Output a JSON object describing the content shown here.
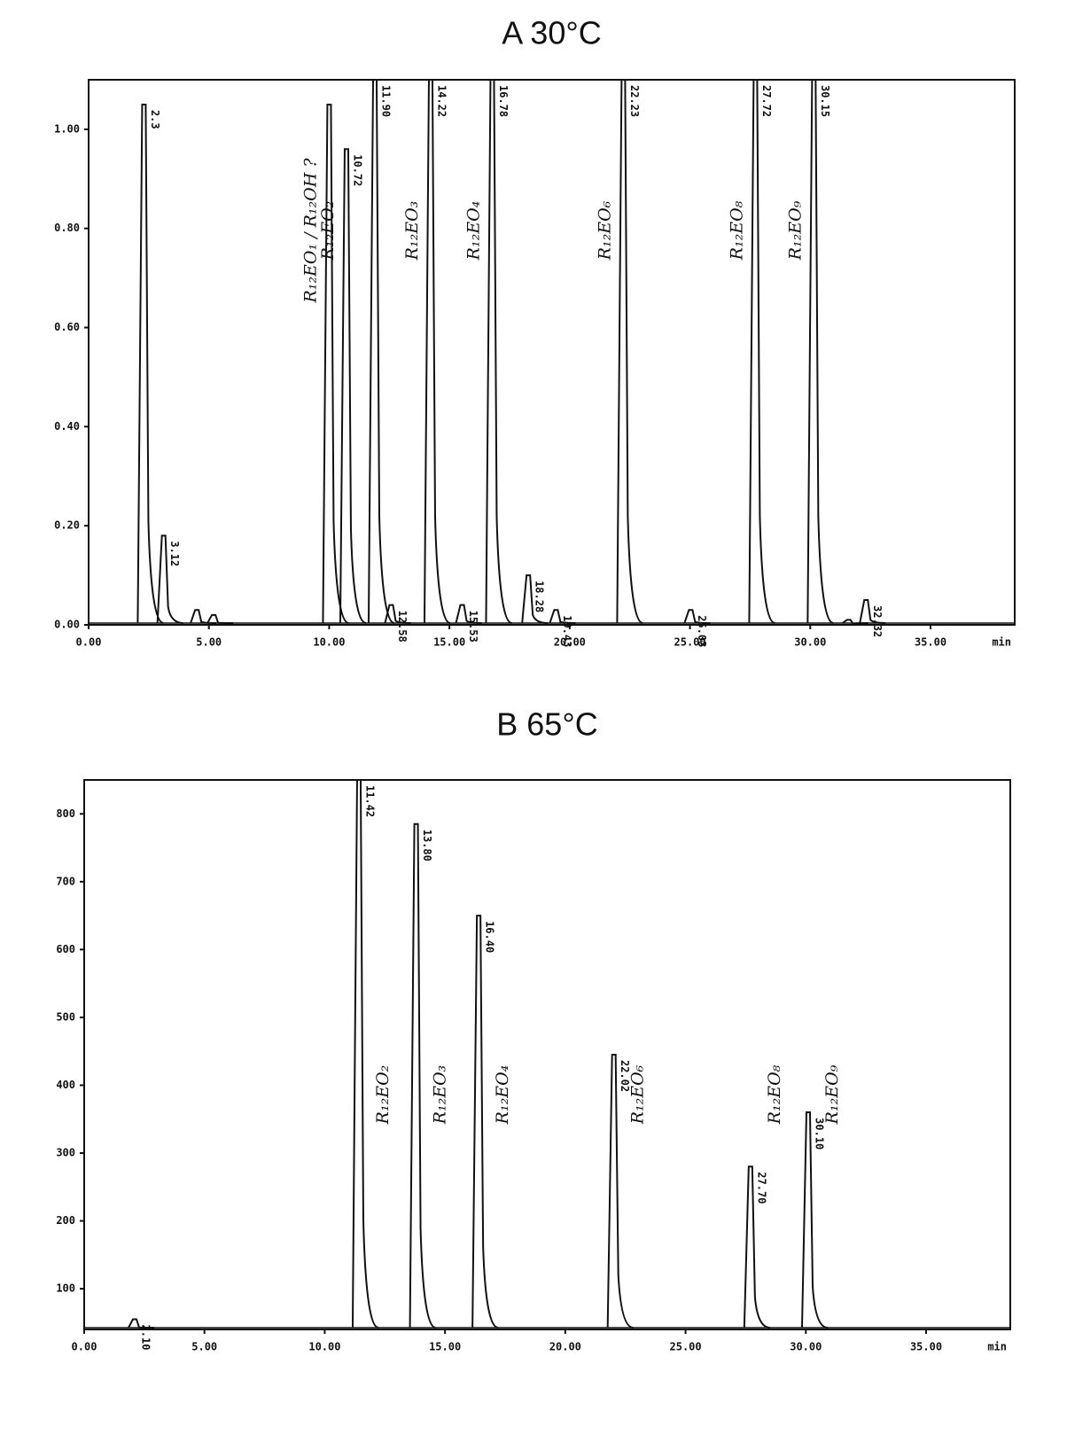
{
  "chart_data": [
    {
      "type": "chromatogram",
      "title": "A  30°C",
      "color": "#111111",
      "x_label": "min",
      "xlim": [
        0,
        38.5
      ],
      "xticks": [
        {
          "value": 0,
          "label": "0.00"
        },
        {
          "value": 5,
          "label": "5.00"
        },
        {
          "value": 10,
          "label": "10.00"
        },
        {
          "value": 15,
          "label": "15.00"
        },
        {
          "value": 20,
          "label": "20.00"
        },
        {
          "value": 25,
          "label": "25.00"
        },
        {
          "value": 30,
          "label": "30.00"
        },
        {
          "value": 35,
          "label": "35.00"
        }
      ],
      "ylim": [
        0,
        1.1
      ],
      "yticks": [
        {
          "value": 0,
          "label": "0.00"
        },
        {
          "value": 0.2,
          "label": "0.20"
        },
        {
          "value": 0.4,
          "label": "0.40"
        },
        {
          "value": 0.6,
          "label": "0.60"
        },
        {
          "value": 0.8,
          "label": "0.80"
        },
        {
          "value": 1,
          "label": "1.00"
        }
      ],
      "x": [
        2.3,
        3.12,
        4.5,
        5.2,
        10.0,
        10.72,
        11.9,
        12.58,
        14.22,
        15.53,
        16.78,
        18.28,
        19.43,
        22.23,
        25.03,
        27.72,
        30.15,
        31.6,
        32.32
      ],
      "values": [
        1.05,
        0.18,
        0.03,
        0.02,
        1.05,
        0.96,
        1.1,
        0.04,
        1.1,
        0.04,
        1.1,
        0.1,
        0.03,
        1.1,
        0.03,
        1.1,
        1.1,
        0.01,
        0.05
      ],
      "peak_labels": [
        "2.3",
        "3.12",
        null,
        null,
        null,
        "10.72",
        "11.90",
        "12.58",
        "14.22",
        "15.53",
        "16.78",
        "18.28",
        "19.43",
        "22.23",
        "25.03",
        "27.72",
        "30.15",
        null,
        "32.32"
      ],
      "compounds": [
        null,
        null,
        null,
        null,
        "R₁₂EO₁ / R₁₂OH ?",
        "R₁₂EO₂",
        null,
        null,
        "R₁₂EO₃",
        null,
        "R₁₂EO₄",
        null,
        null,
        "R₁₂EO₆",
        null,
        "R₁₂EO₈",
        "R₁₂EO₉",
        null,
        null
      ]
    },
    {
      "type": "chromatogram",
      "title": "B  65°C",
      "color": "#111111",
      "x_label": "min",
      "xlim": [
        0,
        38.5
      ],
      "xticks": [
        {
          "value": 0,
          "label": "0.00"
        },
        {
          "value": 5,
          "label": "5.00"
        },
        {
          "value": 10,
          "label": "10.00"
        },
        {
          "value": 15,
          "label": "15.00"
        },
        {
          "value": 20,
          "label": "20.00"
        },
        {
          "value": 25,
          "label": "25.00"
        },
        {
          "value": 30,
          "label": "30.00"
        },
        {
          "value": 35,
          "label": "35.00"
        }
      ],
      "ylim": [
        40,
        850
      ],
      "yticks": [
        100,
        200,
        300,
        400,
        500,
        600,
        700,
        800
      ],
      "x": [
        2.1,
        11.42,
        13.8,
        16.4,
        22.02,
        27.7,
        30.1
      ],
      "values": [
        55,
        850,
        785,
        650,
        445,
        280,
        360
      ],
      "peak_labels": [
        "2.10",
        "11.42",
        "13.80",
        "16.40",
        "22.02",
        "27.70",
        "30.10"
      ],
      "compounds": [
        null,
        "R₁₂EO₂",
        "R₁₂EO₃",
        "R₁₂EO₄",
        "R₁₂EO₆",
        "R₁₂EO₈",
        "R₁₂EO₉"
      ]
    }
  ]
}
